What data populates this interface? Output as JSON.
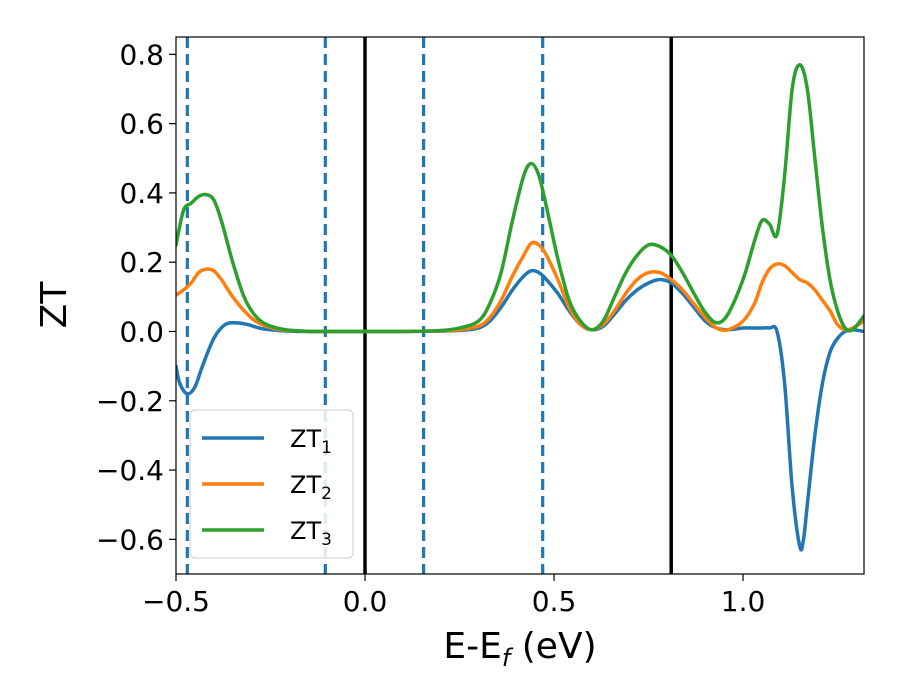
{
  "chart_data": {
    "type": "line",
    "xlabel": {
      "base": "E-E",
      "sub": "f",
      "suffix": " (eV)"
    },
    "ylabel": "ZT",
    "xlim": [
      -0.5,
      1.32
    ],
    "ylim": [
      -0.7,
      0.85
    ],
    "xticks": [
      -0.5,
      0.0,
      0.5,
      1.0
    ],
    "xtick_labels": [
      "−0.5",
      "0.0",
      "0.5",
      "1.0"
    ],
    "yticks": [
      -0.6,
      -0.4,
      -0.2,
      0.0,
      0.2,
      0.4,
      0.6,
      0.8
    ],
    "ytick_labels": [
      "−0.6",
      "−0.4",
      "−0.2",
      "0.0",
      "0.2",
      "0.4",
      "0.6",
      "0.8"
    ],
    "grid": false,
    "legend_position": "lower-left",
    "vlines_solid": [
      0.0,
      0.81
    ],
    "vlines_dashed": [
      -0.47,
      -0.105,
      0.155,
      0.47
    ],
    "series": [
      {
        "name": "ZT",
        "name_sub": "1",
        "color": "#1f77b4",
        "x": [
          -0.5,
          -0.49,
          -0.47,
          -0.45,
          -0.43,
          -0.4,
          -0.37,
          -0.34,
          -0.31,
          -0.28,
          -0.25,
          -0.2,
          -0.15,
          -0.1,
          0.0,
          0.1,
          0.2,
          0.25,
          0.3,
          0.33,
          0.36,
          0.39,
          0.42,
          0.44,
          0.46,
          0.48,
          0.51,
          0.54,
          0.57,
          0.6,
          0.63,
          0.66,
          0.69,
          0.72,
          0.75,
          0.78,
          0.81,
          0.84,
          0.87,
          0.9,
          0.93,
          0.96,
          1.0,
          1.03,
          1.05,
          1.07,
          1.09,
          1.11,
          1.13,
          1.15,
          1.16,
          1.17,
          1.19,
          1.21,
          1.23,
          1.25,
          1.27,
          1.29,
          1.32
        ],
        "y": [
          -0.1,
          -0.15,
          -0.18,
          -0.16,
          -0.1,
          -0.02,
          0.02,
          0.025,
          0.02,
          0.01,
          0.005,
          0.001,
          0.0,
          0.0,
          0.0,
          0.0,
          0.001,
          0.003,
          0.01,
          0.03,
          0.07,
          0.12,
          0.16,
          0.175,
          0.17,
          0.15,
          0.11,
          0.06,
          0.02,
          0.005,
          0.015,
          0.05,
          0.09,
          0.12,
          0.14,
          0.15,
          0.14,
          0.11,
          0.07,
          0.03,
          0.01,
          0.005,
          0.01,
          0.01,
          0.01,
          0.01,
          0.0,
          -0.15,
          -0.45,
          -0.62,
          -0.6,
          -0.5,
          -0.3,
          -0.15,
          -0.06,
          -0.02,
          0.0,
          0.005,
          0.0
        ]
      },
      {
        "name": "ZT",
        "name_sub": "2",
        "color": "#ff7f0e",
        "x": [
          -0.5,
          -0.48,
          -0.46,
          -0.44,
          -0.42,
          -0.4,
          -0.38,
          -0.35,
          -0.32,
          -0.29,
          -0.26,
          -0.22,
          -0.18,
          -0.14,
          -0.1,
          0.0,
          0.1,
          0.2,
          0.25,
          0.3,
          0.33,
          0.36,
          0.39,
          0.42,
          0.44,
          0.46,
          0.48,
          0.51,
          0.54,
          0.57,
          0.6,
          0.63,
          0.66,
          0.69,
          0.72,
          0.75,
          0.78,
          0.81,
          0.84,
          0.87,
          0.9,
          0.93,
          0.96,
          1.0,
          1.03,
          1.05,
          1.07,
          1.09,
          1.11,
          1.13,
          1.15,
          1.17,
          1.19,
          1.21,
          1.23,
          1.25,
          1.27,
          1.29,
          1.32
        ],
        "y": [
          0.105,
          0.12,
          0.14,
          0.17,
          0.18,
          0.175,
          0.15,
          0.1,
          0.06,
          0.03,
          0.015,
          0.005,
          0.002,
          0.0,
          0.0,
          0.0,
          0.0,
          0.002,
          0.005,
          0.015,
          0.04,
          0.09,
          0.16,
          0.22,
          0.255,
          0.25,
          0.22,
          0.15,
          0.07,
          0.02,
          0.005,
          0.02,
          0.06,
          0.11,
          0.15,
          0.17,
          0.17,
          0.15,
          0.12,
          0.08,
          0.04,
          0.01,
          0.005,
          0.03,
          0.08,
          0.14,
          0.18,
          0.195,
          0.19,
          0.17,
          0.15,
          0.14,
          0.12,
          0.09,
          0.06,
          0.02,
          0.005,
          0.01,
          0.03
        ]
      },
      {
        "name": "ZT",
        "name_sub": "3",
        "color": "#2ca02c",
        "x": [
          -0.5,
          -0.48,
          -0.46,
          -0.44,
          -0.42,
          -0.4,
          -0.38,
          -0.35,
          -0.32,
          -0.29,
          -0.26,
          -0.22,
          -0.18,
          -0.14,
          -0.1,
          0.0,
          0.1,
          0.2,
          0.25,
          0.3,
          0.33,
          0.36,
          0.39,
          0.42,
          0.44,
          0.46,
          0.48,
          0.51,
          0.54,
          0.57,
          0.6,
          0.63,
          0.66,
          0.69,
          0.72,
          0.75,
          0.78,
          0.81,
          0.84,
          0.87,
          0.9,
          0.93,
          0.96,
          1.0,
          1.03,
          1.05,
          1.07,
          1.09,
          1.11,
          1.13,
          1.15,
          1.17,
          1.19,
          1.21,
          1.23,
          1.25,
          1.27,
          1.29,
          1.32
        ],
        "y": [
          0.25,
          0.35,
          0.37,
          0.39,
          0.395,
          0.38,
          0.32,
          0.2,
          0.1,
          0.045,
          0.02,
          0.007,
          0.002,
          0.0,
          0.0,
          0.0,
          0.0,
          0.003,
          0.01,
          0.03,
          0.08,
          0.17,
          0.32,
          0.45,
          0.485,
          0.45,
          0.36,
          0.21,
          0.09,
          0.03,
          0.005,
          0.03,
          0.1,
          0.17,
          0.22,
          0.25,
          0.245,
          0.22,
          0.17,
          0.11,
          0.055,
          0.025,
          0.05,
          0.15,
          0.26,
          0.32,
          0.31,
          0.28,
          0.45,
          0.7,
          0.77,
          0.7,
          0.5,
          0.3,
          0.15,
          0.06,
          0.01,
          0.005,
          0.045
        ]
      }
    ]
  }
}
